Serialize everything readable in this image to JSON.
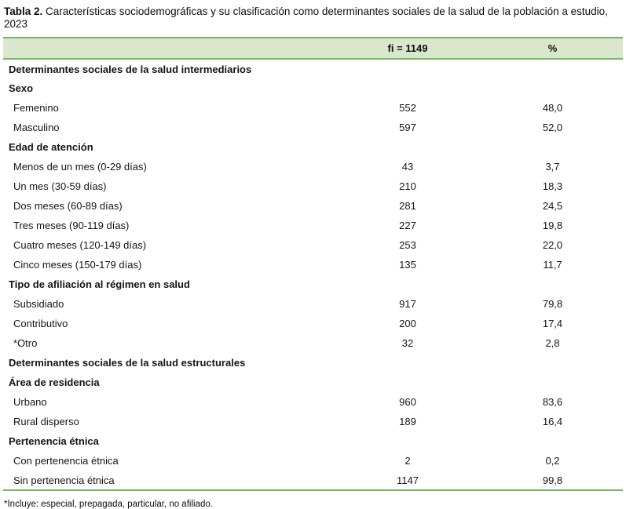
{
  "title": {
    "label": "Tabla 2.",
    "text": " Características sociodemográficas y su clasificación como determinantes sociales de la salud de la población a estudio, 2023"
  },
  "table": {
    "columns": [
      "",
      "fi = 1149",
      "%"
    ],
    "rows": [
      {
        "label": "Determinantes sociales de la salud intermediarios",
        "fi": "",
        "pct": "",
        "style": "section"
      },
      {
        "label": "Sexo",
        "fi": "",
        "pct": "",
        "style": "group"
      },
      {
        "label": "Femenino",
        "fi": "552",
        "pct": "48,0",
        "style": "item"
      },
      {
        "label": "Masculino",
        "fi": "597",
        "pct": "52,0",
        "style": "item"
      },
      {
        "label": "Edad de atención",
        "fi": "",
        "pct": "",
        "style": "group"
      },
      {
        "label": "Menos de un mes (0-29 días)",
        "fi": "43",
        "pct": "3,7",
        "style": "item"
      },
      {
        "label": "Un mes (30-59 días)",
        "fi": "210",
        "pct": "18,3",
        "style": "item"
      },
      {
        "label": "Dos meses (60-89 días)",
        "fi": "281",
        "pct": "24,5",
        "style": "item"
      },
      {
        "label": "Tres meses (90-119 días)",
        "fi": "227",
        "pct": "19,8",
        "style": "item"
      },
      {
        "label": "Cuatro meses (120-149 días)",
        "fi": "253",
        "pct": "22,0",
        "style": "item"
      },
      {
        "label": "Cinco meses (150-179 días)",
        "fi": "135",
        "pct": "11,7",
        "style": "item"
      },
      {
        "label": "Tipo de afiliación al régimen en salud",
        "fi": "",
        "pct": "",
        "style": "group"
      },
      {
        "label": "Subsidiado",
        "fi": "917",
        "pct": "79,8",
        "style": "item"
      },
      {
        "label": "Contributivo",
        "fi": "200",
        "pct": "17,4",
        "style": "item"
      },
      {
        "label": "*Otro",
        "fi": "32",
        "pct": "2,8",
        "style": "item"
      },
      {
        "label": "Determinantes sociales de la salud estructurales",
        "fi": "",
        "pct": "",
        "style": "section"
      },
      {
        "label": "Área de residencia",
        "fi": "",
        "pct": "",
        "style": "group"
      },
      {
        "label": "Urbano",
        "fi": "960",
        "pct": "83,6",
        "style": "item"
      },
      {
        "label": "Rural disperso",
        "fi": "189",
        "pct": "16,4",
        "style": "item"
      },
      {
        "label": "Pertenencia étnica",
        "fi": "",
        "pct": "",
        "style": "group"
      },
      {
        "label": "Con pertenencia étnica",
        "fi": "2",
        "pct": "0,2",
        "style": "item"
      },
      {
        "label": "Sin pertenencia étnica",
        "fi": "1147",
        "pct": "99,8",
        "style": "item"
      }
    ]
  },
  "footnote": "*Incluye: especial, prepagada, particular, no afiliado.",
  "colors": {
    "header_bg": "#dbe7cc",
    "border_green": "#74b663",
    "text_color": "#151515"
  }
}
